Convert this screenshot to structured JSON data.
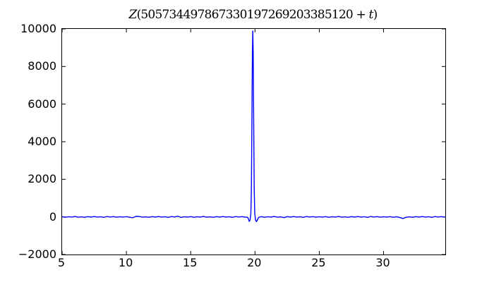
{
  "figure": {
    "background": "#ffffff",
    "title": {
      "full": "Z(505734497867330197269203385120 + t)",
      "func": "Z",
      "lparen": "(",
      "number": "505734497867330197269203385120",
      "plus": " + ",
      "var": "t",
      "rparen": ")"
    }
  },
  "chart_data": {
    "type": "line",
    "title": "Z(505734497867330197269203385120 + t)",
    "xlabel": "",
    "ylabel": "",
    "xlim": [
      5,
      34.8
    ],
    "ylim": [
      -2000,
      10000
    ],
    "xticks": [
      5,
      10,
      15,
      20,
      25,
      30
    ],
    "xtick_labels": [
      "5",
      "10",
      "15",
      "20",
      "25",
      "30"
    ],
    "yticks": [
      -2000,
      0,
      2000,
      4000,
      6000,
      8000,
      10000
    ],
    "ytick_labels": [
      "−2000",
      "0",
      "2000",
      "4000",
      "6000",
      "8000",
      "10000"
    ],
    "line_color": "#0000ff",
    "line_width": 1.4,
    "grid": false,
    "legend": null,
    "tick_direction": "in",
    "peak": {
      "x": 19.83,
      "y": 9890
    },
    "negative_lobes": [
      {
        "x": 19.55,
        "y": -240
      },
      {
        "x": 20.11,
        "y": -250
      }
    ],
    "points": [
      [
        5.0,
        12
      ],
      [
        5.25,
        -18
      ],
      [
        5.5,
        8
      ],
      [
        5.75,
        -10
      ],
      [
        6.0,
        22
      ],
      [
        6.25,
        -14
      ],
      [
        6.5,
        6
      ],
      [
        6.75,
        -20
      ],
      [
        7.0,
        15
      ],
      [
        7.25,
        -8
      ],
      [
        7.5,
        18
      ],
      [
        7.75,
        -12
      ],
      [
        8.0,
        10
      ],
      [
        8.25,
        -25
      ],
      [
        8.5,
        20
      ],
      [
        8.75,
        -6
      ],
      [
        9.0,
        14
      ],
      [
        9.25,
        -16
      ],
      [
        9.5,
        9
      ],
      [
        9.75,
        -11
      ],
      [
        10.0,
        12
      ],
      [
        10.25,
        -18
      ],
      [
        10.5,
        -42
      ],
      [
        10.75,
        30
      ],
      [
        11.0,
        22
      ],
      [
        11.25,
        -14
      ],
      [
        11.5,
        6
      ],
      [
        11.75,
        -20
      ],
      [
        12.0,
        15
      ],
      [
        12.25,
        -8
      ],
      [
        12.5,
        18
      ],
      [
        12.75,
        -12
      ],
      [
        13.0,
        10
      ],
      [
        13.25,
        -25
      ],
      [
        13.5,
        20
      ],
      [
        13.75,
        -6
      ],
      [
        14.0,
        40
      ],
      [
        14.25,
        -30
      ],
      [
        14.5,
        9
      ],
      [
        14.75,
        -11
      ],
      [
        15.0,
        12
      ],
      [
        15.25,
        -18
      ],
      [
        15.5,
        8
      ],
      [
        15.75,
        -10
      ],
      [
        16.0,
        22
      ],
      [
        16.25,
        -14
      ],
      [
        16.5,
        6
      ],
      [
        16.75,
        -20
      ],
      [
        17.0,
        15
      ],
      [
        17.25,
        -8
      ],
      [
        17.5,
        18
      ],
      [
        17.75,
        -12
      ],
      [
        18.0,
        10
      ],
      [
        18.25,
        -25
      ],
      [
        18.5,
        20
      ],
      [
        18.75,
        -6
      ],
      [
        19.0,
        14
      ],
      [
        19.25,
        -16
      ],
      [
        19.4,
        -15
      ],
      [
        19.48,
        -80
      ],
      [
        19.55,
        -240
      ],
      [
        19.62,
        -160
      ],
      [
        19.68,
        200
      ],
      [
        19.72,
        1500
      ],
      [
        19.76,
        5000
      ],
      [
        19.8,
        8800
      ],
      [
        19.83,
        9890
      ],
      [
        19.86,
        8800
      ],
      [
        19.9,
        5000
      ],
      [
        19.94,
        1500
      ],
      [
        19.98,
        200
      ],
      [
        20.04,
        -160
      ],
      [
        20.11,
        -250
      ],
      [
        20.18,
        -180
      ],
      [
        20.25,
        -60
      ],
      [
        20.32,
        -15
      ],
      [
        20.5,
        12
      ],
      [
        20.75,
        -18
      ],
      [
        21.0,
        8
      ],
      [
        21.25,
        -10
      ],
      [
        21.5,
        22
      ],
      [
        21.75,
        -14
      ],
      [
        22.0,
        6
      ],
      [
        22.25,
        -38
      ],
      [
        22.5,
        15
      ],
      [
        22.75,
        -8
      ],
      [
        23.0,
        18
      ],
      [
        23.25,
        -12
      ],
      [
        23.5,
        10
      ],
      [
        23.75,
        -25
      ],
      [
        24.0,
        20
      ],
      [
        24.25,
        -6
      ],
      [
        24.5,
        14
      ],
      [
        24.75,
        -16
      ],
      [
        25.0,
        9
      ],
      [
        25.25,
        -11
      ],
      [
        25.5,
        12
      ],
      [
        25.75,
        -18
      ],
      [
        26.0,
        8
      ],
      [
        26.25,
        -10
      ],
      [
        26.5,
        22
      ],
      [
        26.75,
        -14
      ],
      [
        27.0,
        6
      ],
      [
        27.25,
        -20
      ],
      [
        27.5,
        15
      ],
      [
        27.75,
        -8
      ],
      [
        28.0,
        18
      ],
      [
        28.25,
        -12
      ],
      [
        28.5,
        10
      ],
      [
        28.75,
        -25
      ],
      [
        29.0,
        20
      ],
      [
        29.25,
        -6
      ],
      [
        29.5,
        14
      ],
      [
        29.75,
        -16
      ],
      [
        30.0,
        9
      ],
      [
        30.25,
        -11
      ],
      [
        30.5,
        12
      ],
      [
        30.75,
        -18
      ],
      [
        31.0,
        8
      ],
      [
        31.25,
        -30
      ],
      [
        31.5,
        -85
      ],
      [
        31.75,
        -20
      ],
      [
        32.0,
        6
      ],
      [
        32.25,
        -20
      ],
      [
        32.5,
        15
      ],
      [
        32.75,
        -8
      ],
      [
        33.0,
        18
      ],
      [
        33.25,
        -12
      ],
      [
        33.5,
        10
      ],
      [
        33.75,
        -25
      ],
      [
        34.0,
        20
      ],
      [
        34.25,
        -6
      ],
      [
        34.5,
        14
      ],
      [
        34.75,
        -11
      ],
      [
        34.8,
        5
      ]
    ]
  }
}
